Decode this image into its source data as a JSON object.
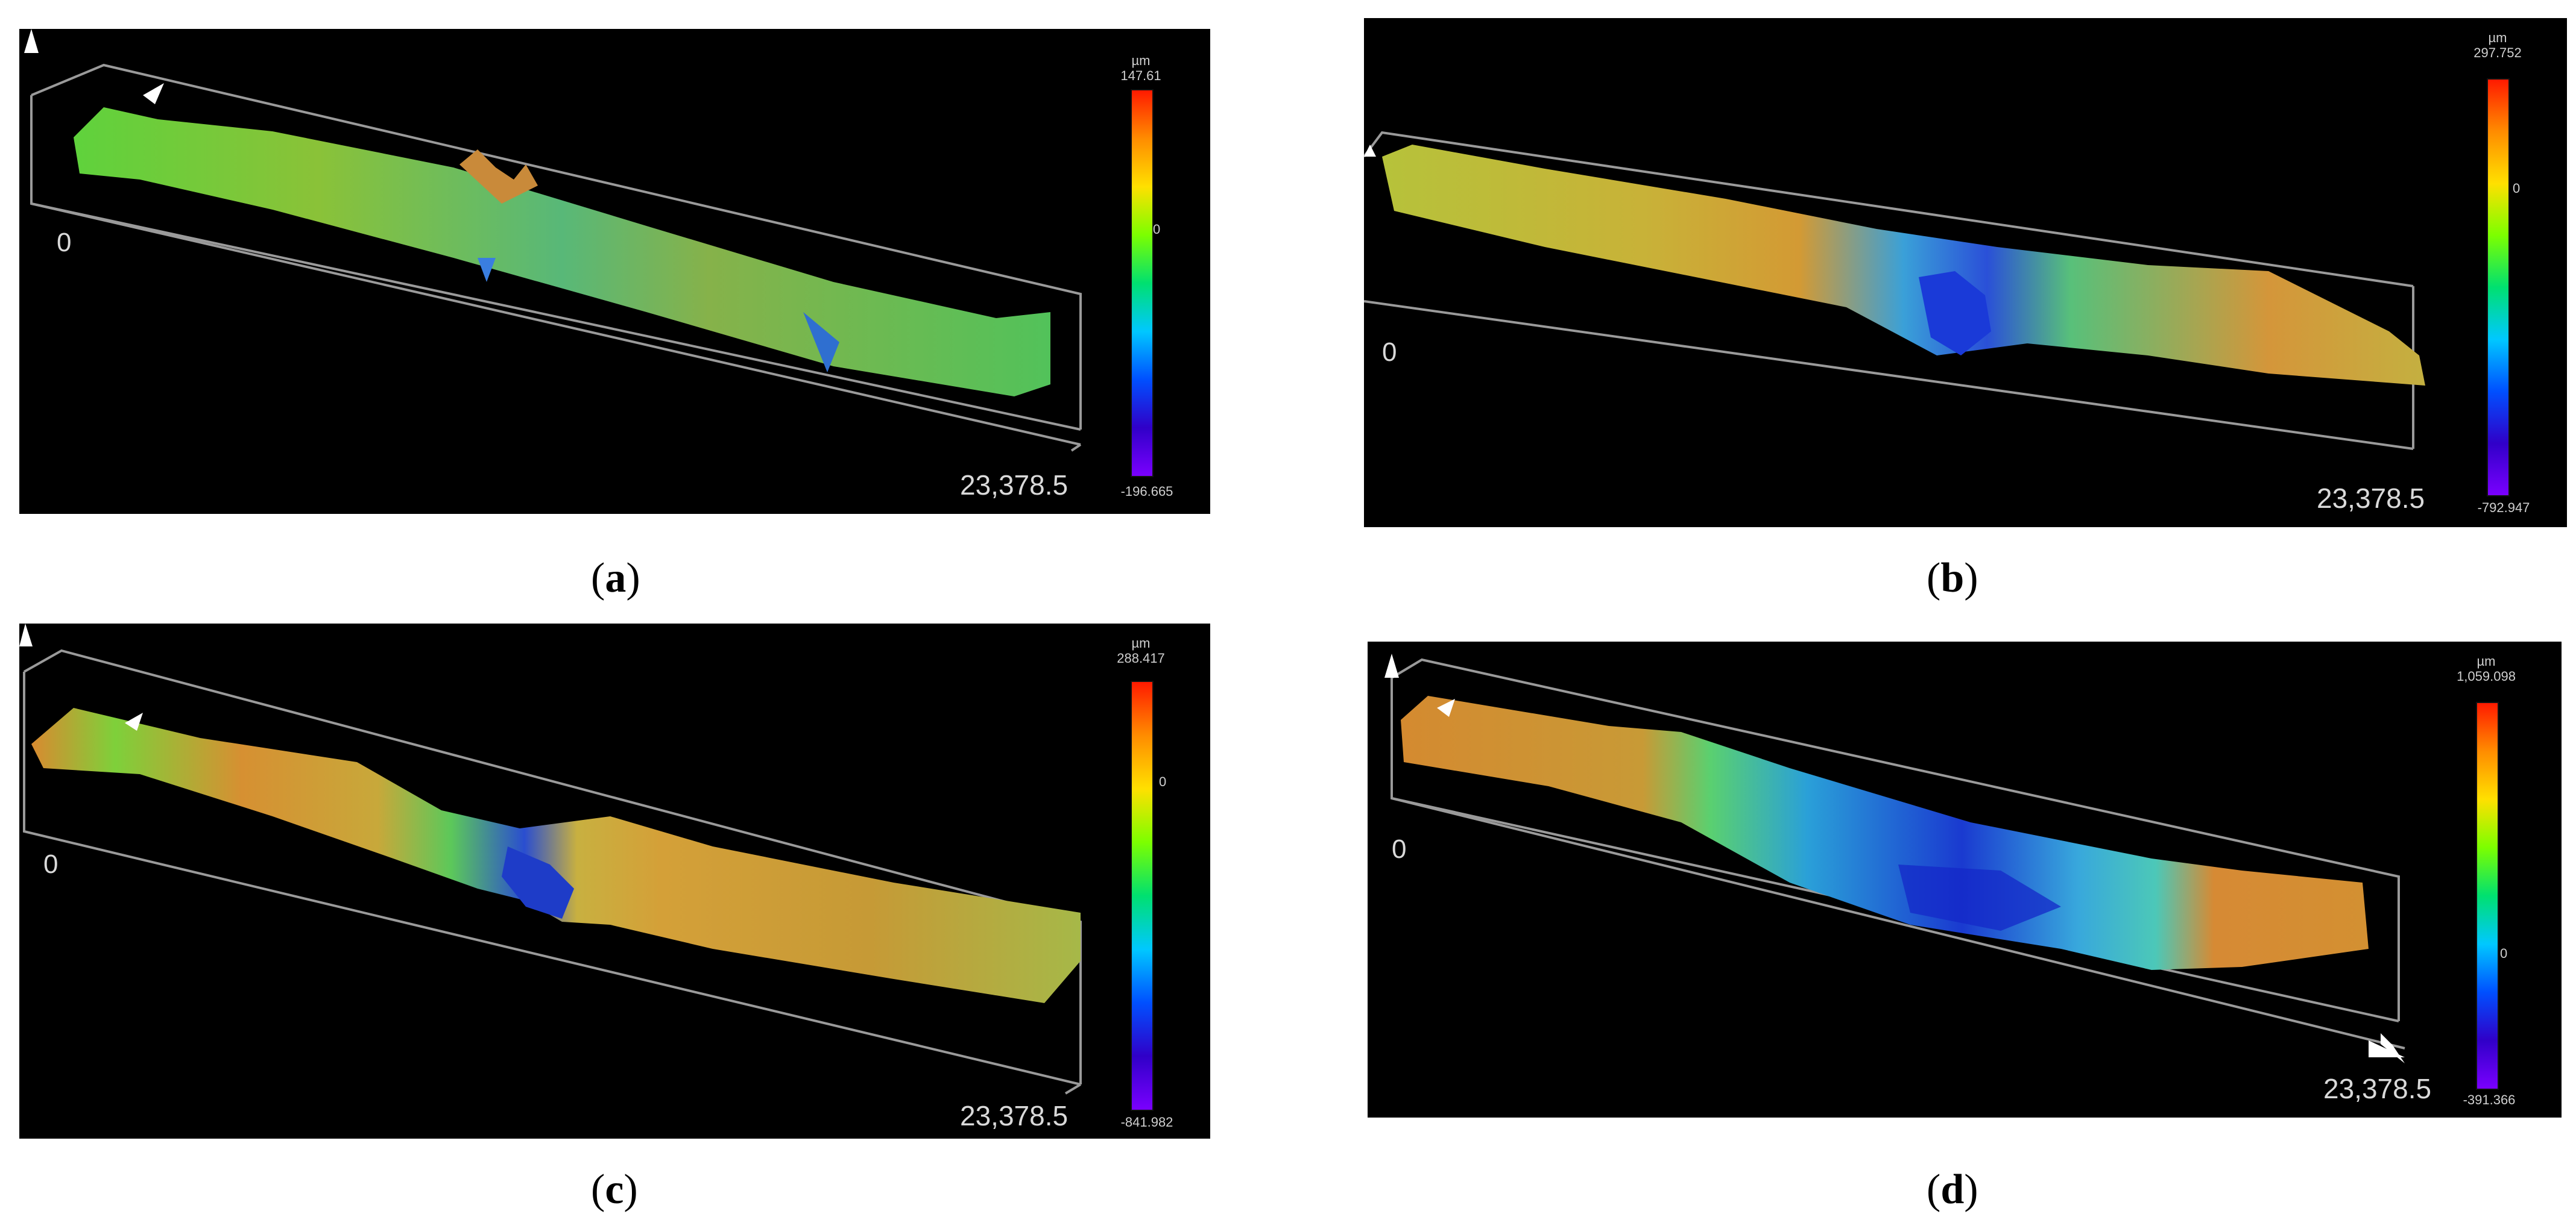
{
  "figure": {
    "panels": [
      {
        "id": "a",
        "caption_letter": "a",
        "origin_label": "0",
        "length_label": "23,378.5",
        "colorbar": {
          "unit": "µm",
          "max": "147.61",
          "zero": "0",
          "min": "-196.665"
        },
        "zero_fraction": 0.43
      },
      {
        "id": "b",
        "caption_letter": "b",
        "origin_label": "0",
        "length_label": "23,378.5",
        "colorbar": {
          "unit": "µm",
          "max": "297.752",
          "zero": "0",
          "min": "-792.947"
        },
        "zero_fraction": 0.27
      },
      {
        "id": "c",
        "caption_letter": "c",
        "origin_label": "0",
        "length_label": "23,378.5",
        "colorbar": {
          "unit": "µm",
          "max": "288.417",
          "zero": "0",
          "min": "-841.982"
        },
        "zero_fraction": 0.26
      },
      {
        "id": "d",
        "caption_letter": "d",
        "origin_label": "0",
        "length_label": "23,378.5",
        "colorbar": {
          "unit": "µm",
          "max": "1,059.098",
          "zero": "0",
          "min": "-391.366"
        },
        "zero_fraction": 0.73
      }
    ],
    "colors": {
      "background": "#000000",
      "frame": "#9a9a9a",
      "colormap": [
        "#ff1a00",
        "#ff8c00",
        "#ffe000",
        "#7cff00",
        "#00e070",
        "#00c8ff",
        "#0050ff",
        "#3000c8",
        "#7a00ff"
      ]
    }
  }
}
